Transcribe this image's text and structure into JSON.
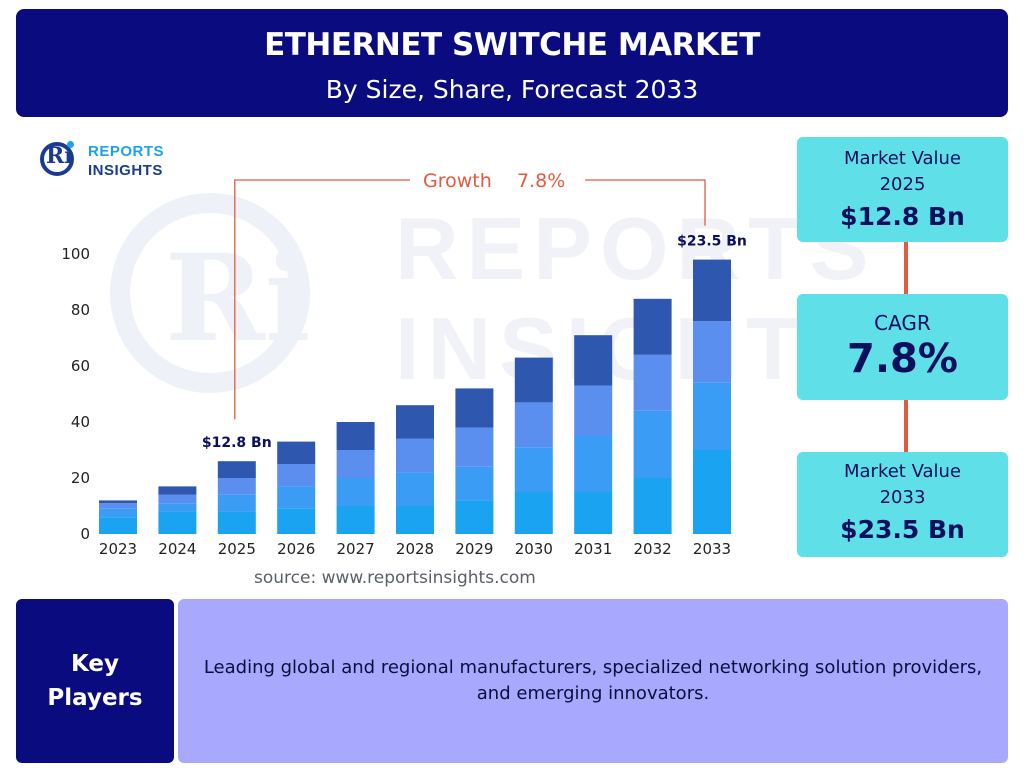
{
  "header": {
    "title": "ETHERNET SWITCHE MARKET",
    "subtitle": "By Size, Share, Forecast 2033"
  },
  "brand": {
    "logo_letter": "Ri",
    "line1": "REPORTS",
    "line2": "INSIGHTS"
  },
  "watermark": {
    "letter": "Ri",
    "line1": "REPORTS",
    "line2": "INSIGHTS"
  },
  "chart_data": {
    "type": "bar",
    "stacked": true,
    "categories": [
      "2023",
      "2024",
      "2025",
      "2026",
      "2027",
      "2028",
      "2029",
      "2030",
      "2031",
      "2032",
      "2033"
    ],
    "series": [
      {
        "values": [
          6,
          8,
          8,
          9,
          10,
          10,
          12,
          15,
          15,
          20,
          30
        ]
      },
      {
        "values": [
          3,
          3,
          6,
          8,
          10,
          12,
          12,
          16,
          20,
          24,
          24
        ]
      },
      {
        "values": [
          2,
          3,
          6,
          8,
          10,
          12,
          14,
          16,
          18,
          20,
          22
        ]
      },
      {
        "values": [
          1,
          3,
          6,
          8,
          10,
          12,
          14,
          16,
          18,
          20,
          22
        ]
      }
    ],
    "ylim": [
      0,
      100
    ],
    "yticks": [
      0,
      20,
      40,
      60,
      80,
      100
    ],
    "xlabel": "",
    "ylabel": "",
    "grid": false,
    "colors": [
      "#1aa3f0",
      "#3b9cf5",
      "#5a8ff0",
      "#2e57b0"
    ],
    "growth_label": "Growth",
    "growth_value": "7.8%",
    "growth_color": "#e45a3f",
    "annotations": [
      {
        "category": "2025",
        "text": "$12.8 Bn"
      },
      {
        "category": "2033",
        "text": "$23.5 Bn"
      }
    ]
  },
  "source": "source: www.reportsinsights.com",
  "kpis": {
    "mv2025": {
      "label_line1": "Market Value",
      "label_line2": "2025",
      "value": "$12.8 Bn"
    },
    "cagr": {
      "label": "CAGR",
      "value": "7.8%"
    },
    "mv2033": {
      "label_line1": "Market Value",
      "label_line2": "2033",
      "value": "$23.5 Bn"
    }
  },
  "key_players": {
    "heading_line1": "Key",
    "heading_line2": "Players",
    "text": "Leading global and regional manufacturers, specialized networking solution providers, and emerging innovators."
  },
  "colors": {
    "navy": "#090b7f",
    "cyan": "#5fe0e8",
    "lavender": "#a8a8ff",
    "accent": "#e45a3f"
  }
}
